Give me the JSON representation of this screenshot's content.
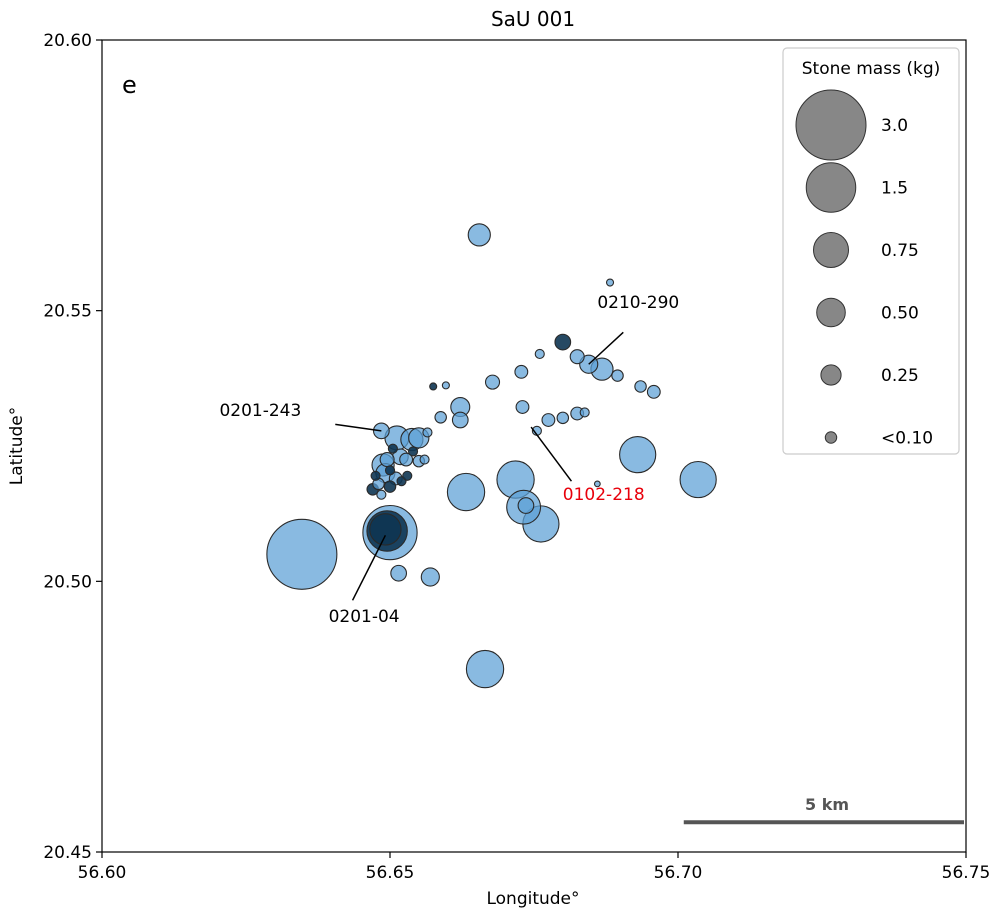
{
  "chart_data": {
    "type": "scatter",
    "title": "SaU 001",
    "panel_label": "e",
    "xlabel": "Longitude°",
    "ylabel": "Latitude°",
    "xlim": [
      56.6,
      56.75
    ],
    "ylim": [
      20.45,
      20.6
    ],
    "xticks": [
      "56.60",
      "56.65",
      "56.70",
      "56.75"
    ],
    "yticks": [
      "20.45",
      "20.50",
      "20.55",
      "20.60"
    ],
    "xtick_values": [
      56.6,
      56.65,
      56.7,
      56.75
    ],
    "ytick_values": [
      20.45,
      20.5,
      20.55,
      20.6
    ],
    "grid": false,
    "point_color": "#5b9fd6",
    "dark_point_color": "#0e3552",
    "edge_color": "#2a2a2a",
    "legend": {
      "title": "Stone mass (kg)",
      "placement": "top-right",
      "color": "#7a7a7a",
      "entries": [
        {
          "label": "3.0",
          "mass": 3.0
        },
        {
          "label": "1.5",
          "mass": 1.5
        },
        {
          "label": "0.75",
          "mass": 0.75
        },
        {
          "label": "0.50",
          "mass": 0.5
        },
        {
          "label": "0.25",
          "mass": 0.25
        },
        {
          "label": "<0.10",
          "mass": 0.08
        }
      ]
    },
    "scale_bar": {
      "label": "5 km",
      "lon_start": 56.701,
      "lon_end": 56.75,
      "lat": 20.4555
    },
    "points": [
      {
        "lon": 56.6347,
        "lat": 20.505,
        "mass": 3.0
      },
      {
        "lon": 56.65,
        "lat": 20.509,
        "mass": 1.8
      },
      {
        "lon": 56.6495,
        "lat": 20.5093,
        "mass": 1.0,
        "dark": true
      },
      {
        "lon": 56.6492,
        "lat": 20.5096,
        "mass": 0.6,
        "dark": true
      },
      {
        "lon": 56.6632,
        "lat": 20.5165,
        "mass": 0.85
      },
      {
        "lon": 56.6718,
        "lat": 20.5188,
        "mass": 0.85
      },
      {
        "lon": 56.6732,
        "lat": 20.5137,
        "mass": 0.7
      },
      {
        "lon": 56.6762,
        "lat": 20.5106,
        "mass": 0.8
      },
      {
        "lon": 56.6736,
        "lat": 20.514,
        "mass": 0.15
      },
      {
        "lon": 56.693,
        "lat": 20.5234,
        "mass": 0.8
      },
      {
        "lon": 56.7035,
        "lat": 20.5188,
        "mass": 0.8
      },
      {
        "lon": 56.6665,
        "lat": 20.4838,
        "mass": 0.85
      },
      {
        "lon": 56.6655,
        "lat": 20.564,
        "mass": 0.3
      },
      {
        "lon": 56.6515,
        "lat": 20.5015,
        "mass": 0.15
      },
      {
        "lon": 56.657,
        "lat": 20.5008,
        "mass": 0.2
      },
      {
        "lon": 56.6845,
        "lat": 20.5401,
        "mass": 0.2
      },
      {
        "lon": 56.6868,
        "lat": 20.5392,
        "mass": 0.3
      },
      {
        "lon": 56.6825,
        "lat": 20.5415,
        "mass": 0.12
      },
      {
        "lon": 56.68,
        "lat": 20.5442,
        "mass": 0.15,
        "dark": true
      },
      {
        "lon": 56.6882,
        "lat": 20.5552,
        "mass": 0.03
      },
      {
        "lon": 56.6895,
        "lat": 20.538,
        "mass": 0.08
      },
      {
        "lon": 56.6935,
        "lat": 20.536,
        "mass": 0.08
      },
      {
        "lon": 56.6958,
        "lat": 20.535,
        "mass": 0.1
      },
      {
        "lon": 56.676,
        "lat": 20.542,
        "mass": 0.05
      },
      {
        "lon": 56.6728,
        "lat": 20.5387,
        "mass": 0.1
      },
      {
        "lon": 56.6678,
        "lat": 20.5368,
        "mass": 0.12
      },
      {
        "lon": 56.673,
        "lat": 20.5322,
        "mass": 0.1
      },
      {
        "lon": 56.6622,
        "lat": 20.5322,
        "mass": 0.22
      },
      {
        "lon": 56.6622,
        "lat": 20.5298,
        "mass": 0.15
      },
      {
        "lon": 56.6588,
        "lat": 20.5303,
        "mass": 0.08
      },
      {
        "lon": 56.6755,
        "lat": 20.5278,
        "mass": 0.05
      },
      {
        "lon": 56.6775,
        "lat": 20.5298,
        "mass": 0.1
      },
      {
        "lon": 56.68,
        "lat": 20.5302,
        "mass": 0.08
      },
      {
        "lon": 56.6825,
        "lat": 20.531,
        "mass": 0.1
      },
      {
        "lon": 56.6838,
        "lat": 20.5312,
        "mass": 0.05
      },
      {
        "lon": 56.6575,
        "lat": 20.536,
        "mass": 0.03,
        "dark": true
      },
      {
        "lon": 56.6597,
        "lat": 20.5362,
        "mass": 0.03
      },
      {
        "lon": 56.6485,
        "lat": 20.5278,
        "mass": 0.15
      },
      {
        "lon": 56.6512,
        "lat": 20.5265,
        "mass": 0.35
      },
      {
        "lon": 56.6538,
        "lat": 20.5262,
        "mass": 0.3
      },
      {
        "lon": 56.655,
        "lat": 20.5265,
        "mass": 0.25
      },
      {
        "lon": 56.6565,
        "lat": 20.5275,
        "mass": 0.05
      },
      {
        "lon": 56.6495,
        "lat": 20.5225,
        "mass": 0.12
      },
      {
        "lon": 56.6488,
        "lat": 20.5215,
        "mass": 0.3
      },
      {
        "lon": 56.6492,
        "lat": 20.52,
        "mass": 0.22
      },
      {
        "lon": 56.6518,
        "lat": 20.523,
        "mass": 0.15
      },
      {
        "lon": 56.6528,
        "lat": 20.5225,
        "mass": 0.1
      },
      {
        "lon": 56.655,
        "lat": 20.5222,
        "mass": 0.08
      },
      {
        "lon": 56.656,
        "lat": 20.5225,
        "mass": 0.05
      },
      {
        "lon": 56.647,
        "lat": 20.517,
        "mass": 0.08,
        "dark": true
      },
      {
        "lon": 56.648,
        "lat": 20.518,
        "mass": 0.08
      },
      {
        "lon": 56.65,
        "lat": 20.5175,
        "mass": 0.08,
        "dark": true
      },
      {
        "lon": 56.651,
        "lat": 20.519,
        "mass": 0.1
      },
      {
        "lon": 56.652,
        "lat": 20.5185,
        "mass": 0.05,
        "dark": true
      },
      {
        "lon": 56.653,
        "lat": 20.5195,
        "mass": 0.05,
        "dark": true
      },
      {
        "lon": 56.6475,
        "lat": 20.5195,
        "mass": 0.05,
        "dark": true
      },
      {
        "lon": 56.6505,
        "lat": 20.5245,
        "mass": 0.05,
        "dark": true
      },
      {
        "lon": 56.654,
        "lat": 20.524,
        "mass": 0.05,
        "dark": true
      },
      {
        "lon": 56.6485,
        "lat": 20.516,
        "mass": 0.05
      },
      {
        "lon": 56.65,
        "lat": 20.5205,
        "mass": 0.05,
        "dark": true
      },
      {
        "lon": 56.686,
        "lat": 20.518,
        "mass": 0.02
      }
    ],
    "annotations": [
      {
        "text": "0210-290",
        "color": "#000000",
        "text_lon": 56.686,
        "text_lat": 20.5505,
        "anchor": "start",
        "point_lon": 56.6845,
        "point_lat": 20.5401,
        "line_from_lon": 56.6905,
        "line_from_lat": 20.546
      },
      {
        "text": "0201-243",
        "color": "#000000",
        "text_lon": 56.6275,
        "text_lat": 20.5305,
        "anchor": "middle",
        "point_lon": 56.6485,
        "point_lat": 20.5278,
        "line_from_lon": 56.6405,
        "line_from_lat": 20.529
      },
      {
        "text": "0102-218",
        "color": "#e8000b",
        "text_lon": 56.68,
        "text_lat": 20.515,
        "anchor": "start",
        "point_lon": 56.6745,
        "point_lat": 20.5285,
        "line_from_lon": 56.6815,
        "line_from_lat": 20.5185
      },
      {
        "text": "0201-04",
        "color": "#000000",
        "text_lon": 56.6455,
        "text_lat": 20.4925,
        "anchor": "middle",
        "point_lon": 56.6492,
        "point_lat": 20.5085,
        "line_from_lon": 56.6435,
        "line_from_lat": 20.4965
      }
    ]
  }
}
